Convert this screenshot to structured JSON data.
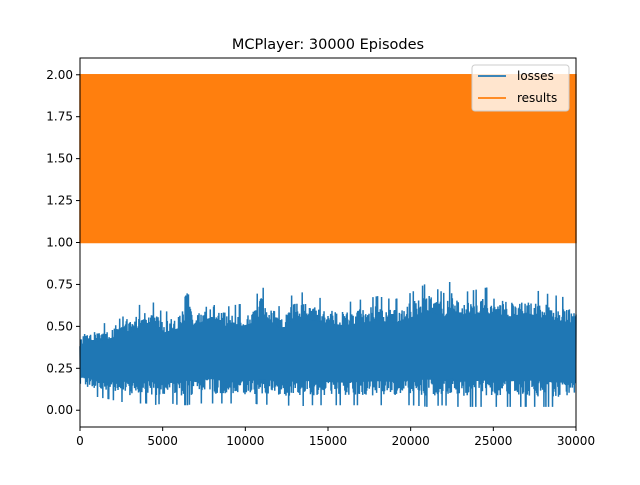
{
  "chart_data": {
    "type": "line",
    "title": "MCPlayer: 30000 Episodes",
    "xlabel": "",
    "ylabel": "",
    "xlim": [
      0,
      30000
    ],
    "ylim": [
      -0.1,
      2.1
    ],
    "x_ticks": [
      "0",
      "5000",
      "10000",
      "15000",
      "20000",
      "25000",
      "30000"
    ],
    "y_ticks": [
      "0.00",
      "0.25",
      "0.50",
      "0.75",
      "1.00",
      "1.25",
      "1.50",
      "1.75",
      "2.00"
    ],
    "grid": false,
    "legend_position": "top-right",
    "series": [
      {
        "name": "losses",
        "color": "#1f77b4",
        "style": "high-frequency noisy band",
        "x_range": [
          0,
          30000
        ],
        "envelope_x": [
          0,
          500,
          1000,
          2000,
          2500,
          3000,
          4000,
          4500,
          5000,
          5500,
          6000,
          6500,
          7000,
          7500,
          8000,
          9000,
          10000,
          10500,
          11000,
          12000,
          12500,
          13000,
          14000,
          15000,
          16000,
          17000,
          18000,
          19000,
          20000,
          21000,
          22000,
          22500,
          23000,
          24000,
          25000,
          26000,
          27000,
          28000,
          29000,
          30000
        ],
        "envelope_upper": [
          0.46,
          0.52,
          0.5,
          0.54,
          0.62,
          0.58,
          0.66,
          0.64,
          0.58,
          0.6,
          0.62,
          0.7,
          0.62,
          0.68,
          0.7,
          0.62,
          0.64,
          0.66,
          0.74,
          0.62,
          0.63,
          0.72,
          0.68,
          0.66,
          0.64,
          0.66,
          0.68,
          0.66,
          0.7,
          0.76,
          0.7,
          0.79,
          0.7,
          0.72,
          0.74,
          0.71,
          0.74,
          0.7,
          0.68,
          0.66
        ],
        "envelope_lower": [
          0.12,
          0.1,
          0.08,
          0.06,
          0.05,
          0.04,
          0.04,
          0.03,
          0.04,
          0.04,
          0.03,
          0.03,
          0.04,
          0.04,
          0.04,
          0.04,
          0.04,
          0.04,
          0.03,
          0.04,
          0.03,
          0.02,
          0.03,
          0.03,
          0.03,
          0.03,
          0.03,
          0.03,
          0.03,
          0.02,
          0.03,
          0.02,
          0.02,
          0.02,
          0.02,
          0.02,
          0.02,
          0.02,
          0.02,
          0.02
        ]
      },
      {
        "name": "results",
        "color": "#ff7f0e",
        "style": "alternating between 1 and 2 each episode (filled band)",
        "x_range": [
          0,
          30000
        ],
        "values_range": [
          1.0,
          2.0
        ]
      }
    ]
  },
  "colors": {
    "axis": "#000000",
    "losses": "#1f77b4",
    "results": "#ff7f0e",
    "legend_edge": "#cccccc"
  }
}
